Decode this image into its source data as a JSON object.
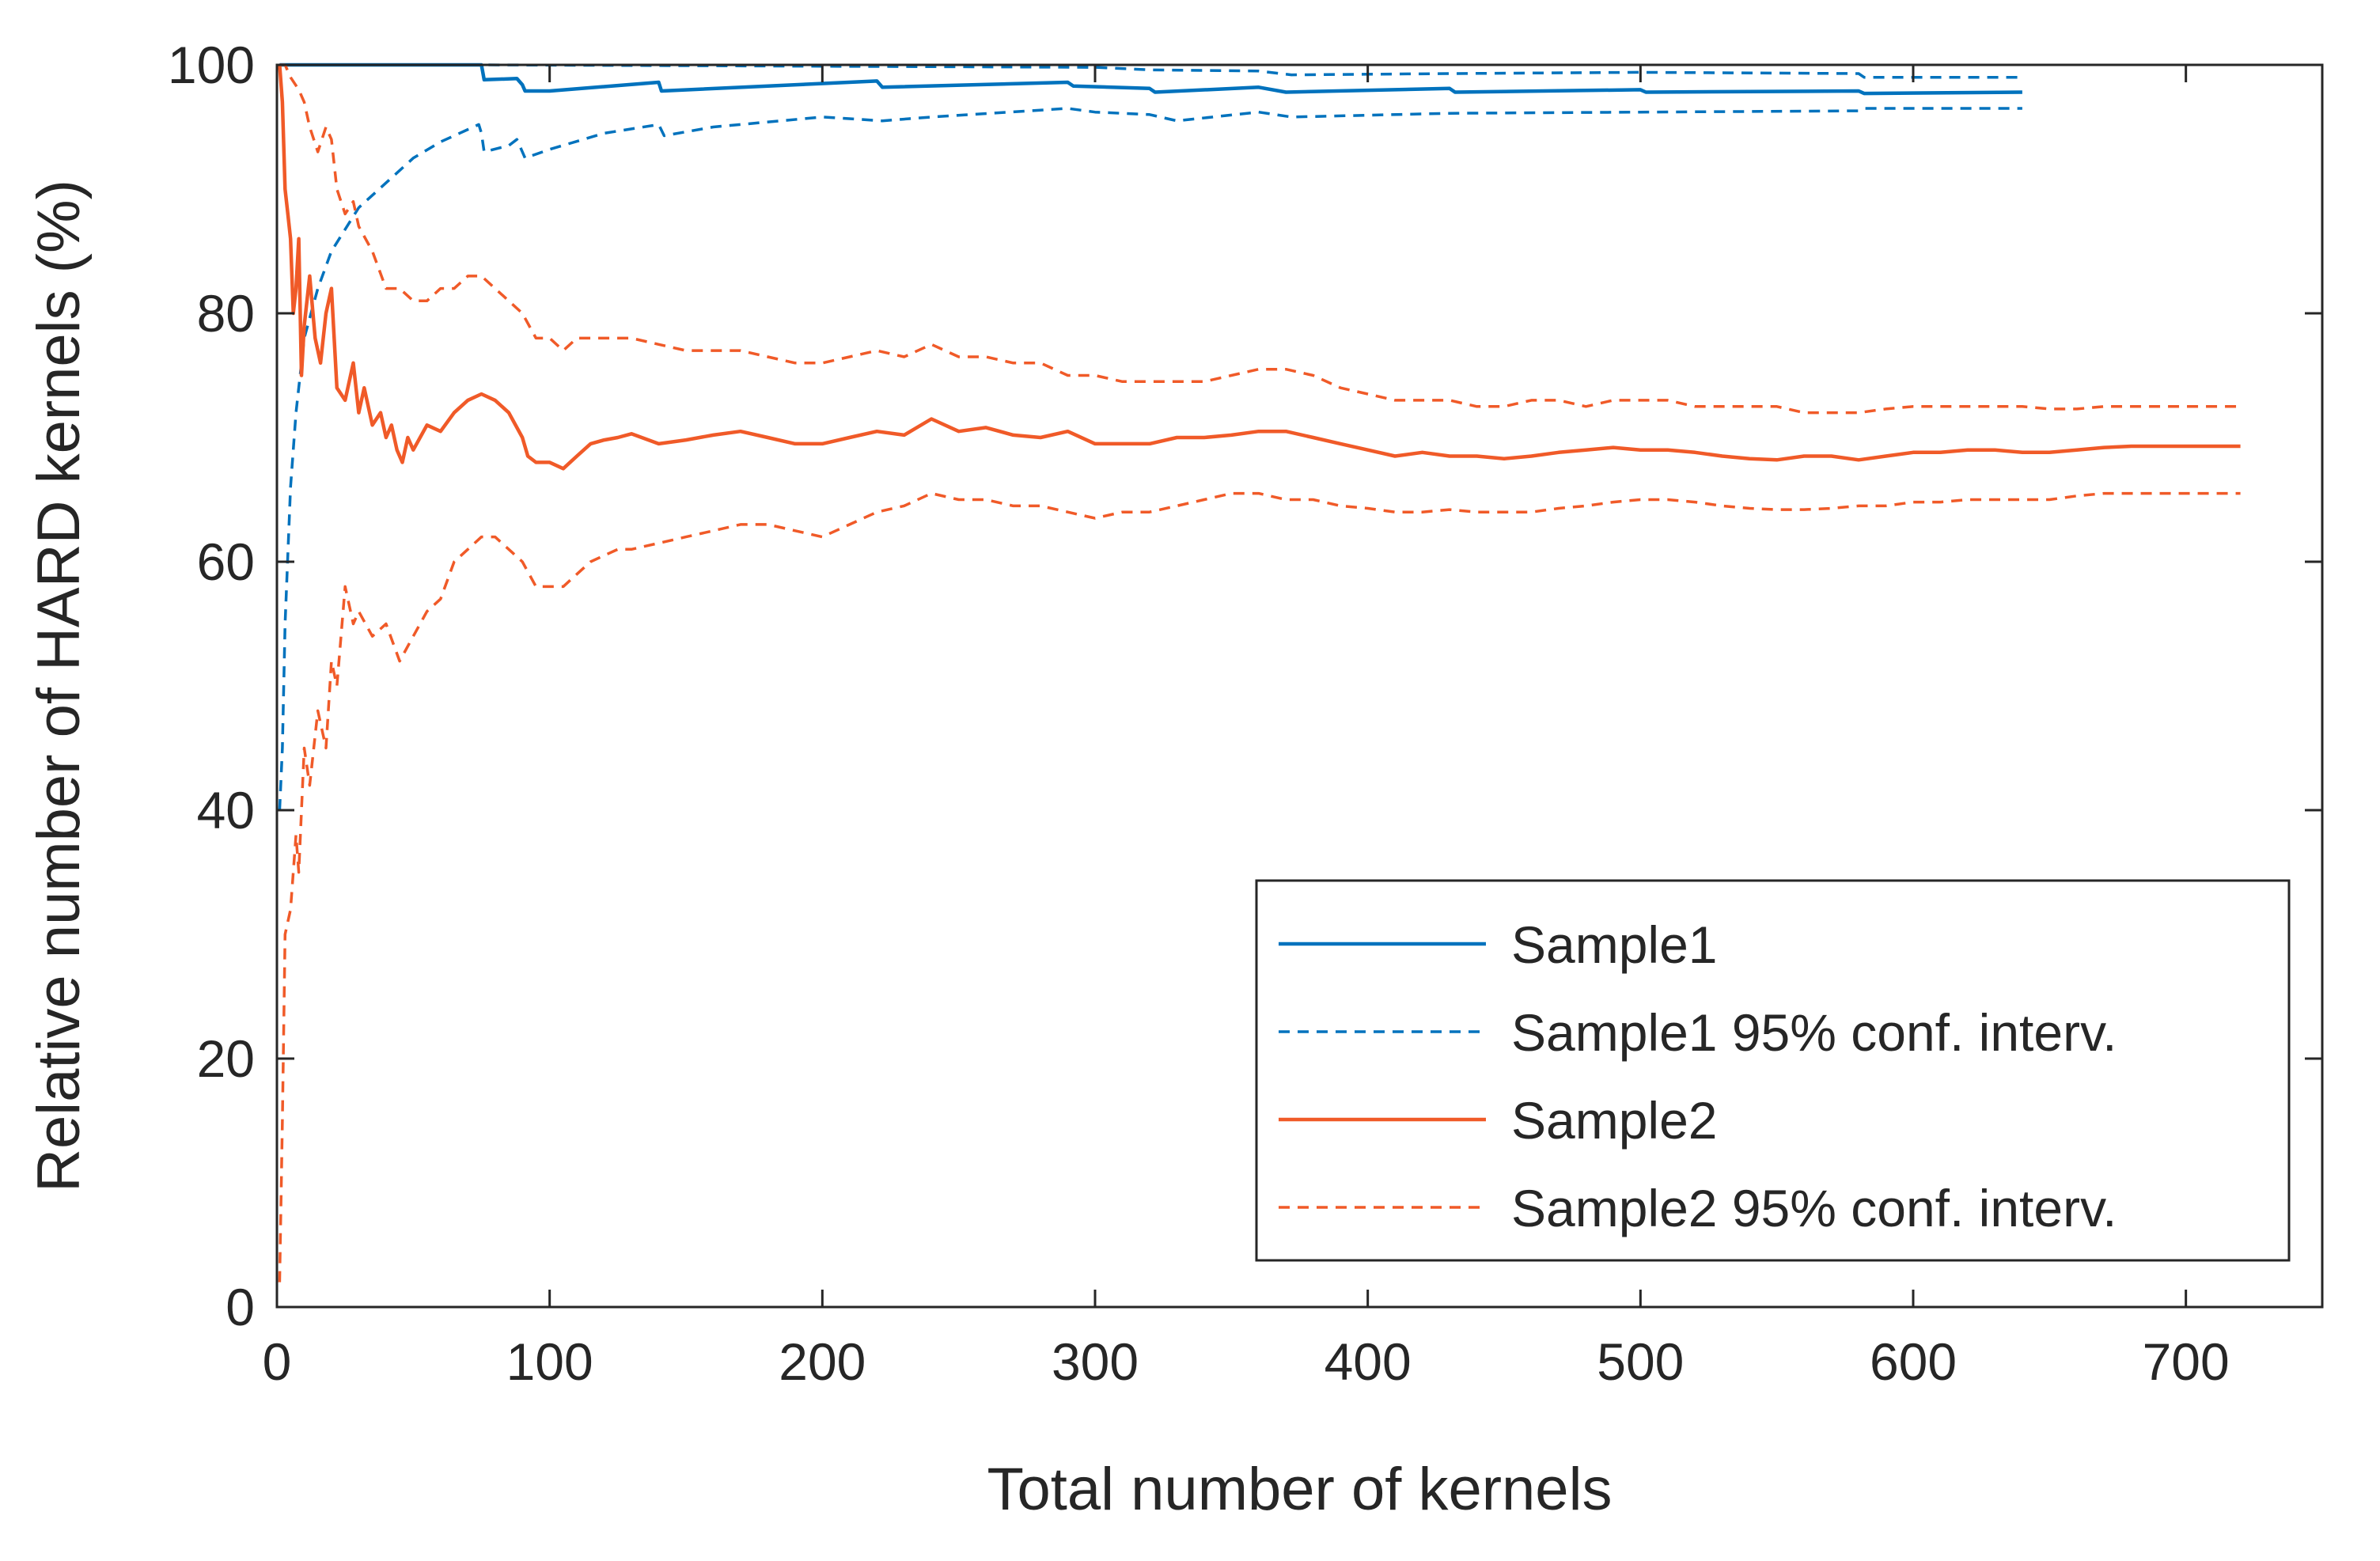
{
  "chart_data": {
    "type": "line",
    "title": "",
    "xlabel": "Total number of kernels",
    "ylabel": "Relative number of HARD kernels (%)",
    "xlim": [
      0,
      750
    ],
    "ylim": [
      0,
      100
    ],
    "xticks": [
      0,
      100,
      200,
      300,
      400,
      500,
      600,
      700
    ],
    "yticks": [
      0,
      20,
      40,
      60,
      80,
      100
    ],
    "grid": false,
    "legend_position": "bottom-right",
    "series": [
      {
        "name": "Sample1",
        "color": "#0072BD",
        "style": "solid",
        "x": [
          1,
          75,
          76,
          88,
          90,
          91,
          100,
          140,
          141,
          220,
          222,
          290,
          292,
          320,
          322,
          360,
          370,
          430,
          432,
          500,
          502,
          580,
          582,
          640
        ],
        "y": [
          100,
          100,
          98.8,
          98.9,
          98.4,
          97.9,
          97.9,
          98.6,
          97.9,
          98.7,
          98.2,
          98.6,
          98.3,
          98.1,
          97.8,
          98.2,
          97.8,
          98.1,
          97.8,
          98.0,
          97.8,
          97.9,
          97.7,
          97.8
        ]
      },
      {
        "name": "Sample1 95% conf. interv.",
        "color": "#0072BD",
        "style": "dashed",
        "x": [
          1,
          75,
          76,
          300,
          320,
          360,
          372,
          430,
          500,
          580,
          582,
          640
        ],
        "y": [
          100,
          100,
          100,
          99.8,
          99.6,
          99.5,
          99.2,
          99.3,
          99.4,
          99.3,
          99.0,
          99.0
        ]
      },
      {
        "name": "Sample1 95% conf. interv.",
        "color": "#0072BD",
        "style": "dashed",
        "x": [
          1,
          2,
          3,
          5,
          7,
          10,
          15,
          20,
          30,
          40,
          50,
          60,
          74,
          75,
          76,
          85,
          88,
          90,
          91,
          100,
          120,
          140,
          142,
          160,
          200,
          222,
          240,
          290,
          300,
          320,
          330,
          360,
          372,
          430,
          500,
          580,
          582,
          640
        ],
        "y": [
          40,
          45,
          55,
          66,
          72,
          78,
          82,
          85,
          88.5,
          90.5,
          92.5,
          93.8,
          95.2,
          94.5,
          93.0,
          93.5,
          94.0,
          93.0,
          92.5,
          93.2,
          94.5,
          95.2,
          94.3,
          95.0,
          95.8,
          95.5,
          95.8,
          96.5,
          96.2,
          96.0,
          95.5,
          96.2,
          95.8,
          96.1,
          96.2,
          96.3,
          96.5,
          96.5
        ]
      },
      {
        "name": "Sample2",
        "color": "#F05A28",
        "style": "solid",
        "x": [
          1,
          2,
          3,
          4,
          5,
          6,
          7,
          8,
          9,
          10,
          12,
          14,
          16,
          18,
          20,
          22,
          25,
          28,
          30,
          32,
          35,
          38,
          40,
          42,
          44,
          46,
          48,
          50,
          55,
          60,
          65,
          70,
          75,
          80,
          85,
          90,
          92,
          95,
          100,
          105,
          110,
          115,
          120,
          125,
          130,
          140,
          150,
          160,
          170,
          180,
          190,
          200,
          210,
          220,
          230,
          240,
          250,
          260,
          270,
          280,
          290,
          300,
          310,
          320,
          330,
          340,
          350,
          360,
          370,
          380,
          390,
          400,
          410,
          420,
          430,
          440,
          450,
          460,
          470,
          480,
          490,
          500,
          510,
          520,
          530,
          540,
          550,
          560,
          570,
          580,
          590,
          600,
          610,
          620,
          630,
          640,
          650,
          660,
          670,
          680,
          690,
          700,
          710,
          720
        ],
        "y": [
          100,
          97,
          90,
          88,
          86,
          80,
          82,
          86,
          75,
          79,
          83,
          78,
          76,
          80,
          82,
          74,
          73,
          76,
          72,
          74,
          71,
          72,
          70,
          71,
          69,
          68,
          70,
          69,
          71,
          70.5,
          72,
          73,
          73.5,
          73,
          72,
          70,
          68.5,
          68,
          68,
          67.5,
          68.5,
          69.5,
          69.8,
          70,
          70.3,
          69.5,
          69.8,
          70.2,
          70.5,
          70,
          69.5,
          69.5,
          70,
          70.5,
          70.2,
          71.5,
          70.5,
          70.8,
          70.2,
          70,
          70.5,
          69.5,
          69.5,
          69.5,
          70,
          70,
          70.2,
          70.5,
          70.5,
          70,
          69.5,
          69,
          68.5,
          68.8,
          68.5,
          68.5,
          68.3,
          68.5,
          68.8,
          69,
          69.2,
          69,
          69,
          68.8,
          68.5,
          68.3,
          68.2,
          68.5,
          68.5,
          68.2,
          68.5,
          68.8,
          68.8,
          69,
          69,
          68.8,
          68.8,
          69,
          69.2,
          69.3,
          69.3,
          69.3,
          69.3,
          69.3
        ]
      },
      {
        "name": "Sample2 95% conf. interv.",
        "color": "#F05A28",
        "style": "dashed",
        "x": [
          1,
          3,
          5,
          8,
          10,
          12,
          15,
          18,
          20,
          22,
          25,
          28,
          30,
          35,
          40,
          45,
          50,
          55,
          60,
          65,
          70,
          75,
          80,
          85,
          90,
          95,
          100,
          105,
          110,
          115,
          120,
          125,
          130,
          140,
          150,
          160,
          170,
          180,
          190,
          200,
          210,
          220,
          230,
          240,
          250,
          260,
          270,
          280,
          290,
          300,
          310,
          320,
          330,
          340,
          350,
          360,
          370,
          380,
          390,
          400,
          410,
          420,
          430,
          440,
          450,
          460,
          470,
          480,
          490,
          500,
          510,
          520,
          530,
          540,
          550,
          560,
          570,
          580,
          590,
          600,
          610,
          620,
          630,
          640,
          650,
          660,
          670,
          680,
          690,
          700,
          710,
          720
        ],
        "y": [
          100,
          100,
          99,
          98,
          97,
          95,
          93,
          95,
          94,
          90,
          88,
          89,
          87,
          85,
          82,
          82,
          81,
          81,
          82,
          82,
          83,
          83,
          82,
          81,
          80,
          78,
          78,
          77,
          78,
          78,
          78,
          78,
          78,
          77.5,
          77,
          77,
          77,
          76.5,
          76,
          76,
          76.5,
          77,
          76.5,
          77.5,
          76.5,
          76.5,
          76,
          76,
          75,
          75,
          74.5,
          74.5,
          74.5,
          74.5,
          75,
          75.5,
          75.5,
          75,
          74,
          73.5,
          73,
          73,
          73,
          72.5,
          72.5,
          73,
          73,
          72.5,
          73,
          73,
          73,
          72.5,
          72.5,
          72.5,
          72.5,
          72,
          72,
          72,
          72.3,
          72.5,
          72.5,
          72.5,
          72.5,
          72.5,
          72.3,
          72.3,
          72.5,
          72.5,
          72.5,
          72.5,
          72.5,
          72.5
        ]
      },
      {
        "name": "Sample2 95% conf. interv.",
        "color": "#F05A28",
        "style": "dashed",
        "x": [
          1,
          2,
          3,
          5,
          7,
          8,
          10,
          12,
          15,
          18,
          20,
          22,
          25,
          28,
          30,
          35,
          40,
          45,
          50,
          55,
          60,
          65,
          70,
          75,
          80,
          85,
          90,
          95,
          100,
          105,
          110,
          115,
          120,
          125,
          130,
          140,
          150,
          160,
          170,
          180,
          190,
          200,
          210,
          220,
          230,
          240,
          250,
          260,
          270,
          280,
          290,
          300,
          310,
          320,
          330,
          340,
          350,
          360,
          370,
          380,
          390,
          400,
          410,
          420,
          430,
          440,
          450,
          460,
          470,
          480,
          490,
          500,
          510,
          520,
          530,
          540,
          550,
          560,
          570,
          580,
          590,
          600,
          610,
          620,
          630,
          640,
          650,
          660,
          670,
          680,
          690,
          700,
          710,
          720
        ],
        "y": [
          2,
          15,
          30,
          32,
          38,
          35,
          45,
          42,
          48,
          45,
          52,
          50,
          58,
          55,
          56,
          54,
          55,
          52,
          54,
          56,
          57,
          60,
          61,
          62,
          62,
          61,
          60,
          58,
          58,
          58,
          59,
          60,
          60.5,
          61,
          61,
          61.5,
          62,
          62.5,
          63,
          63,
          62.5,
          62,
          63,
          64,
          64.5,
          65.5,
          65,
          65,
          64.5,
          64.5,
          64,
          63.5,
          64,
          64,
          64.5,
          65,
          65.5,
          65.5,
          65,
          65,
          64.5,
          64.3,
          64,
          64,
          64.2,
          64,
          64,
          64,
          64.3,
          64.5,
          64.8,
          65,
          65,
          64.8,
          64.5,
          64.3,
          64.2,
          64.2,
          64.3,
          64.5,
          64.5,
          64.8,
          64.8,
          65,
          65,
          65,
          65,
          65.3,
          65.5,
          65.5,
          65.5,
          65.5,
          65.5,
          65.5
        ]
      }
    ],
    "legend": [
      {
        "label": "Sample1",
        "color": "#0072BD",
        "style": "solid"
      },
      {
        "label": "Sample1 95% conf. interv.",
        "color": "#0072BD",
        "style": "dashed"
      },
      {
        "label": "Sample2",
        "color": "#F05A28",
        "style": "solid"
      },
      {
        "label": "Sample2 95% conf. interv.",
        "color": "#F05A28",
        "style": "dashed"
      }
    ]
  }
}
